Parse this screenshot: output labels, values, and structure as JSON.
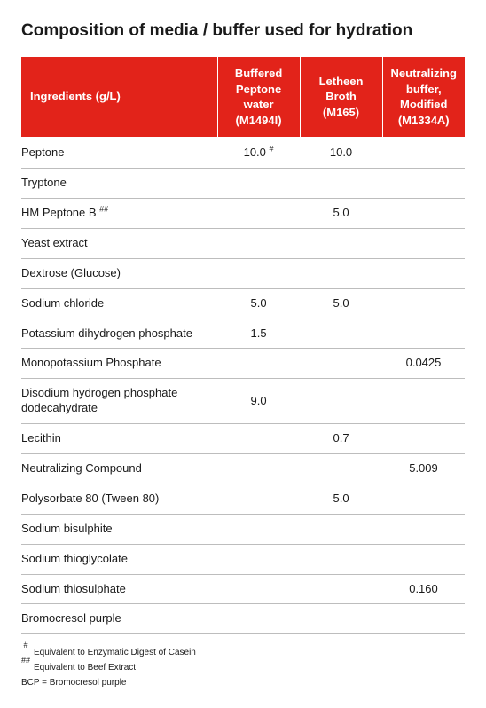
{
  "title": "Composition of media / buffer used for hydration",
  "columns": {
    "ingredients": "Ingredients (g/L)",
    "col1_l1": "Buffered",
    "col1_l2": "Peptone",
    "col1_l3": "water",
    "col1_l4": "(M1494I)",
    "col2_l1": "Letheen Broth",
    "col2_l2": "(M165)",
    "col3_l1": "Neutralizing",
    "col3_l2": "buffer,",
    "col3_l3": "Modified",
    "col3_l4": "(M1334A)"
  },
  "rows": [
    {
      "name": "Peptone",
      "c1": "10.0 #",
      "c2": "10.0",
      "c3": ""
    },
    {
      "name": "Tryptone",
      "c1": "",
      "c2": "",
      "c3": ""
    },
    {
      "name": "HM Peptone B ##",
      "c1": "",
      "c2": "5.0",
      "c3": ""
    },
    {
      "name": "Yeast extract",
      "c1": "",
      "c2": "",
      "c3": ""
    },
    {
      "name": "Dextrose (Glucose)",
      "c1": "",
      "c2": "",
      "c3": ""
    },
    {
      "name": "Sodium chloride",
      "c1": "5.0",
      "c2": "5.0",
      "c3": ""
    },
    {
      "name": "Potassium dihydrogen phosphate",
      "c1": "1.5",
      "c2": "",
      "c3": ""
    },
    {
      "name": "Monopotassium Phosphate",
      "c1": "",
      "c2": "",
      "c3": "0.0425"
    },
    {
      "name": "Disodium hydrogen phosphate dodecahydrate",
      "c1": "9.0",
      "c2": "",
      "c3": ""
    },
    {
      "name": "Lecithin",
      "c1": "",
      "c2": "0.7",
      "c3": ""
    },
    {
      "name": "Neutralizing Compound",
      "c1": "",
      "c2": "",
      "c3": "5.009"
    },
    {
      "name": "Polysorbate 80 (Tween 80)",
      "c1": "",
      "c2": "5.0",
      "c3": ""
    },
    {
      "name": "Sodium bisulphite",
      "c1": "",
      "c2": "",
      "c3": ""
    },
    {
      "name": "Sodium thioglycolate",
      "c1": "",
      "c2": "",
      "c3": ""
    },
    {
      "name": "Sodium thiosulphate",
      "c1": "",
      "c2": "",
      "c3": "0.160"
    },
    {
      "name": "Bromocresol purple",
      "c1": "",
      "c2": "",
      "c3": ""
    }
  ],
  "footnotes": {
    "f1_mark": "#",
    "f1_text": "Equivalent to Enzymatic Digest of Casein",
    "f2_mark": "##",
    "f2_text": "Equivalent to Beef Extract",
    "f3_text": "BCP = Bromocresol purple"
  },
  "style": {
    "header_bg": "#e2231a",
    "header_fg": "#ffffff",
    "border_color": "#bdbdbd",
    "body_font_size": 13,
    "title_font_size": 19
  }
}
